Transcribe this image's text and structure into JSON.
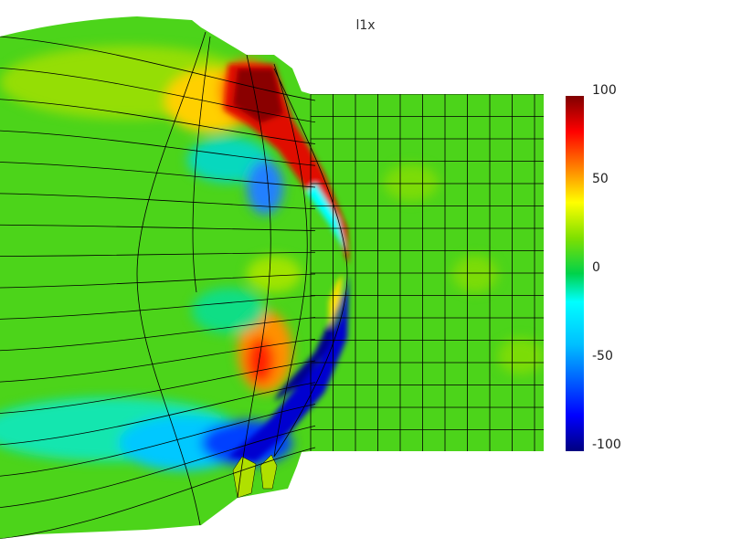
{
  "title": "l1x",
  "colorbar": {
    "min": -100,
    "max": 100,
    "ticks": [
      {
        "value": 100,
        "label": "100"
      },
      {
        "value": 50,
        "label": "50"
      },
      {
        "value": 0,
        "label": "0"
      },
      {
        "value": -50,
        "label": "-50"
      },
      {
        "value": -100,
        "label": "-100"
      }
    ],
    "colormap": [
      "#00007f",
      "#0000ff",
      "#00bfff",
      "#00ffff",
      "#00d24a",
      "#7fe000",
      "#ffff00",
      "#ff7f00",
      "#ff0000",
      "#7f0000"
    ]
  }
}
